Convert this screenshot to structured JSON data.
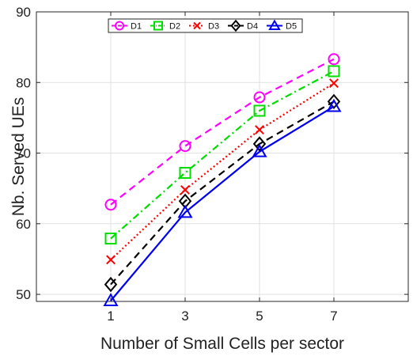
{
  "chart_data": {
    "type": "line",
    "title": "",
    "xlabel": "Number of Small Cells per sector",
    "ylabel": "Nb. Served UEs",
    "x": [
      1,
      3,
      5,
      7
    ],
    "xlim": [
      -1,
      9
    ],
    "ylim": [
      49,
      90
    ],
    "xticks": [
      1,
      3,
      5,
      7
    ],
    "yticks": [
      50,
      60,
      70,
      80,
      90
    ],
    "grid": true,
    "legend": "top",
    "series": [
      {
        "name": "D1",
        "values": [
          62.7,
          71.0,
          77.9,
          83.3
        ],
        "color": "#ff00ff",
        "line_style": "dashed",
        "marker": "circle"
      },
      {
        "name": "D2",
        "values": [
          57.9,
          67.2,
          76.0,
          81.6
        ],
        "color": "#00dd00",
        "line_style": "dash-dot",
        "marker": "square"
      },
      {
        "name": "D3",
        "values": [
          54.9,
          64.8,
          73.3,
          79.9
        ],
        "color": "#ff0000",
        "line_style": "dotted",
        "marker": "x"
      },
      {
        "name": "D4",
        "values": [
          51.4,
          63.2,
          71.3,
          77.3
        ],
        "color": "#000000",
        "line_style": "dashed",
        "marker": "diamond"
      },
      {
        "name": "D5",
        "values": [
          49.1,
          61.6,
          70.2,
          76.6
        ],
        "color": "#0000ee",
        "line_style": "solid",
        "marker": "triangle"
      }
    ]
  }
}
